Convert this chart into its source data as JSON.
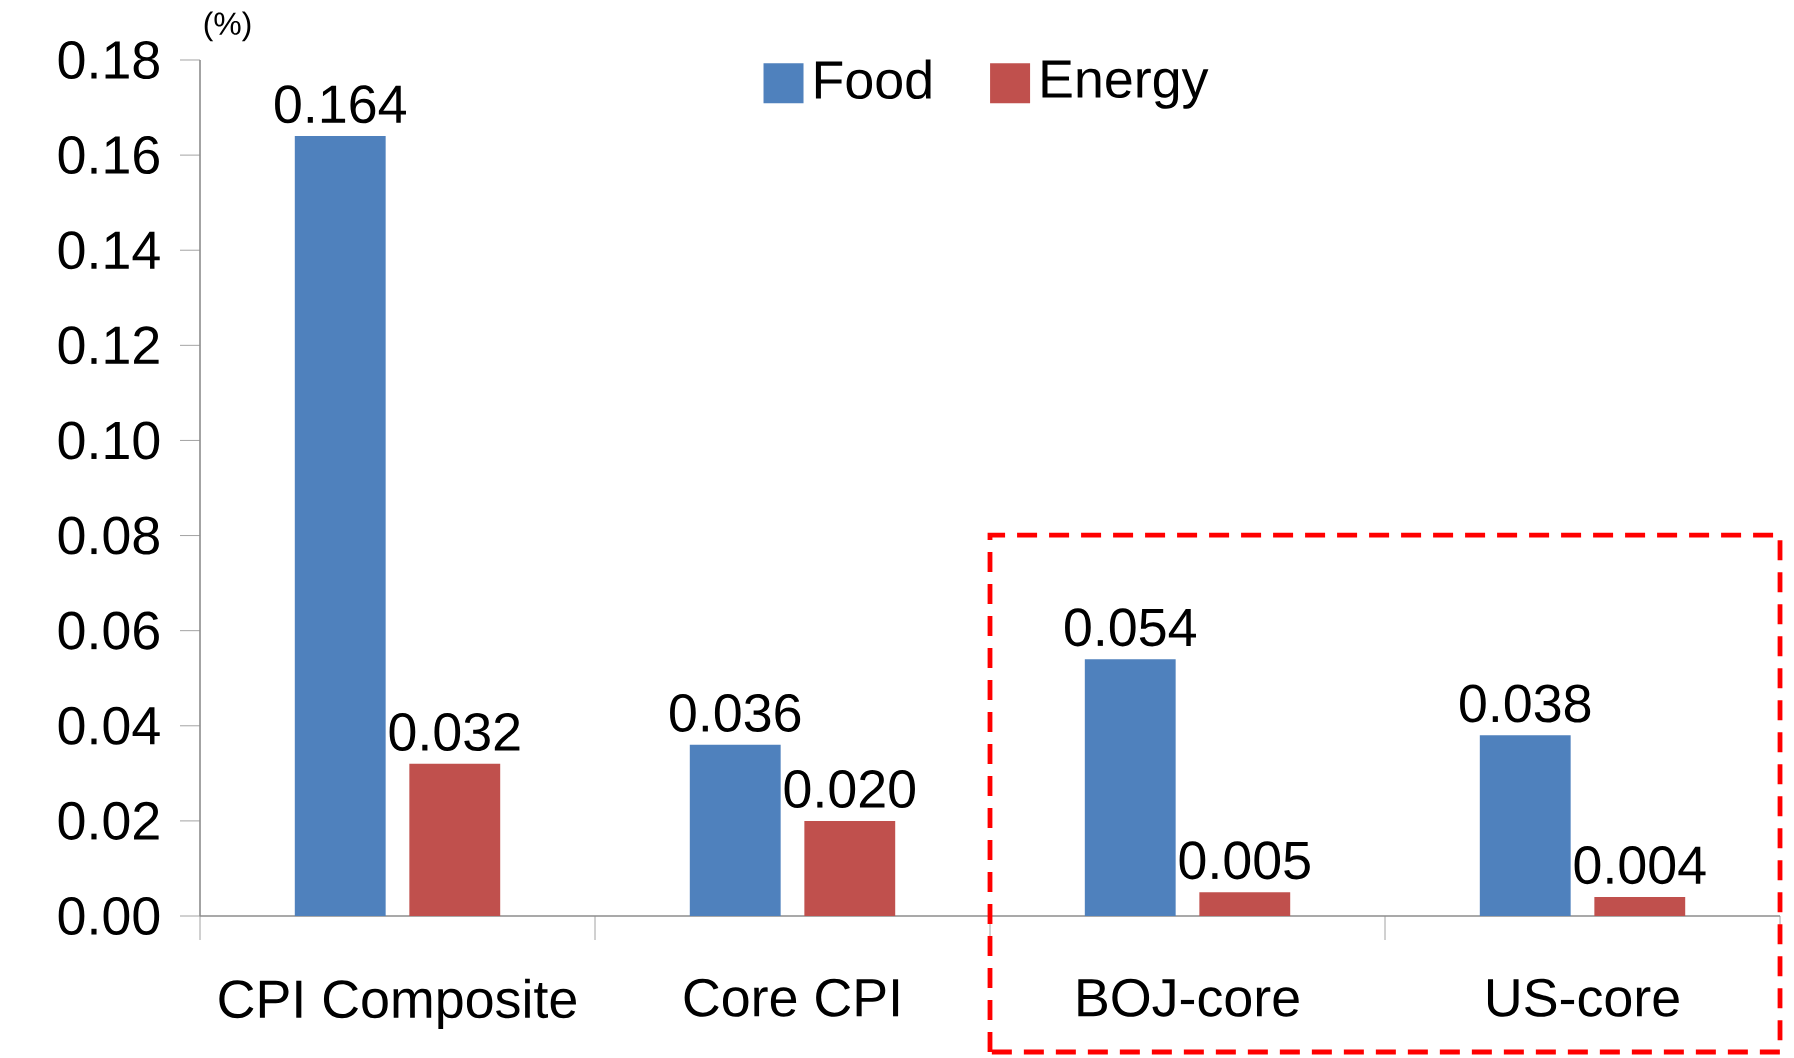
{
  "chart_data": {
    "type": "bar",
    "ylabel": "(%)",
    "categories": [
      "CPI Composite",
      "Core CPI",
      "BOJ-core",
      "US-core"
    ],
    "series": [
      {
        "name": "Food",
        "color": "#4f81bd",
        "values": [
          0.164,
          0.036,
          0.054,
          0.038
        ],
        "value_labels": [
          "0.164",
          "0.036",
          "0.054",
          "0.038"
        ]
      },
      {
        "name": "Energy",
        "color": "#c0504d",
        "values": [
          0.032,
          0.02,
          0.005,
          0.004
        ],
        "value_labels": [
          "0.032",
          "0.020",
          "0.005",
          "0.004"
        ]
      }
    ],
    "ylim": [
      0,
      0.18
    ],
    "yticks": [
      {
        "value": 0,
        "label": "0.00"
      },
      {
        "value": 0.02,
        "label": "0.02"
      },
      {
        "value": 0.04,
        "label": "0.04"
      },
      {
        "value": 0.06,
        "label": "0.06"
      },
      {
        "value": 0.08,
        "label": "0.08"
      },
      {
        "value": 0.1,
        "label": "0.10"
      },
      {
        "value": 0.12,
        "label": "0.12"
      },
      {
        "value": 0.14,
        "label": "0.14"
      },
      {
        "value": 0.16,
        "label": "0.16"
      },
      {
        "value": 0.18,
        "label": "0.18"
      }
    ],
    "legend": "top",
    "grid": false
  }
}
